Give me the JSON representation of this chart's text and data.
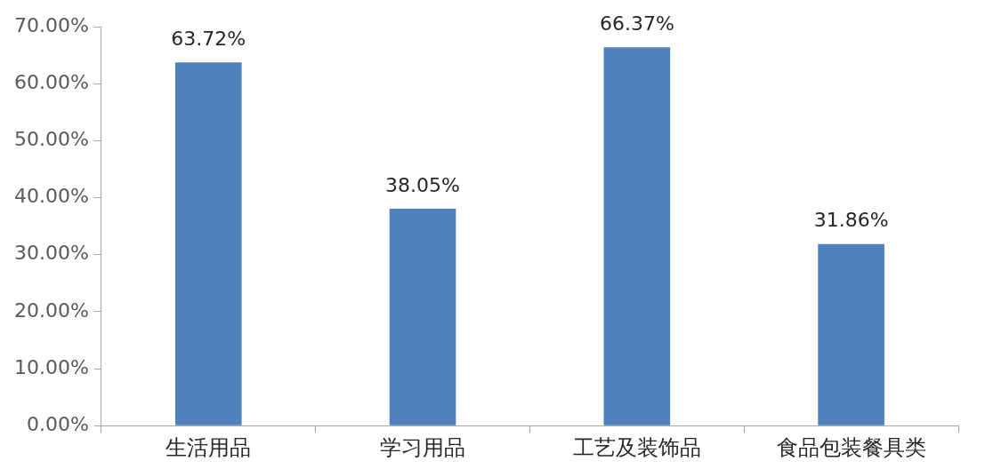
{
  "chart_data": {
    "type": "bar",
    "categories": [
      "生活用品",
      "学习用品",
      "工艺及装饰品",
      "食品包装餐具类"
    ],
    "values": [
      63.72,
      38.05,
      66.37,
      31.86
    ],
    "value_labels": [
      "63.72%",
      "38.05%",
      "66.37%",
      "31.86%"
    ],
    "color": "#4f81bd",
    "ylim": [
      0,
      70
    ],
    "yticks": [
      {
        "value": 0,
        "label": "0.00%"
      },
      {
        "value": 10,
        "label": "10.00%"
      },
      {
        "value": 20,
        "label": "20.00%"
      },
      {
        "value": 30,
        "label": "30.00%"
      },
      {
        "value": 40,
        "label": "40.00%"
      },
      {
        "value": 50,
        "label": "50.00%"
      },
      {
        "value": 60,
        "label": "60.00%"
      },
      {
        "value": 70,
        "label": "70.00%"
      }
    ],
    "grid": false,
    "legend": false
  }
}
